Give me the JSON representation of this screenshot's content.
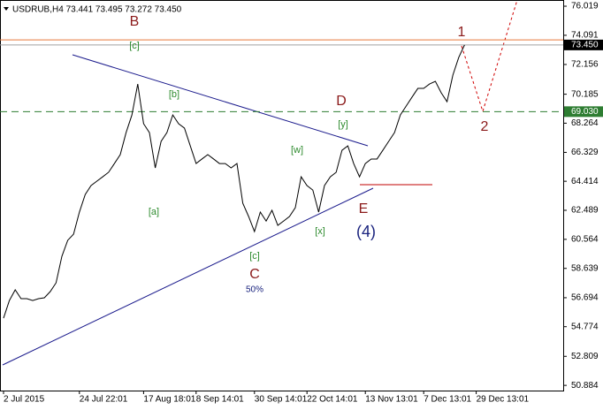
{
  "chart_data": {
    "type": "line",
    "title": "USDRUB,H4  73.441 73.495 73.272 73.450",
    "categories": [
      "2 Jul 2015",
      null,
      null,
      null,
      null,
      null,
      null,
      null,
      null,
      null,
      null,
      null,
      null,
      "24 Jul 22:01",
      null,
      null,
      null,
      null,
      null,
      null,
      null,
      null,
      null,
      null,
      "17 Aug 18:01",
      null,
      null,
      null,
      null,
      null,
      null,
      null,
      null,
      "8 Sep 14:01",
      null,
      null,
      null,
      null,
      null,
      null,
      null,
      null,
      null,
      "30 Sep 14:01",
      null,
      null,
      null,
      null,
      null,
      null,
      null,
      null,
      "22 Oct 14:01",
      null,
      null,
      null,
      null,
      null,
      null,
      null,
      null,
      null,
      "13 Nov 13:01",
      null,
      null,
      null,
      null,
      null,
      null,
      null,
      null,
      null,
      "7 Dec 13:01",
      null,
      null,
      null,
      null,
      null,
      null,
      null,
      null,
      "29 Dec 13:01"
    ],
    "values": [
      55.34,
      56.51,
      57.22,
      56.63,
      56.63,
      56.51,
      56.63,
      56.69,
      57.1,
      57.68,
      59.44,
      60.5,
      60.91,
      62.37,
      63.54,
      64.13,
      64.42,
      64.71,
      65.01,
      65.59,
      66.18,
      67.64,
      68.81,
      70.86,
      68.23,
      67.64,
      65.3,
      67.06,
      67.64,
      68.81,
      68.23,
      67.94,
      66.76,
      65.59,
      65.89,
      66.18,
      65.89,
      65.59,
      65.59,
      65.3,
      65.59,
      62.96,
      62.08,
      61.08,
      62.37,
      61.78,
      62.49,
      61.49,
      61.78,
      62.08,
      62.66,
      64.71,
      64.13,
      63.83,
      62.37,
      64.13,
      64.71,
      65.01,
      66.47,
      66.76,
      65.59,
      64.71,
      65.59,
      65.89,
      65.89,
      66.47,
      67.06,
      67.64,
      68.81,
      69.4,
      69.99,
      70.57,
      70.57,
      70.86,
      71.04,
      70.28,
      69.69,
      71.45,
      72.62,
      73.45,
      null,
      null
    ],
    "color": "#000000",
    "ylim": [
      50.54,
      76.43
    ],
    "yticks": [
      76.019,
      74.091,
      72.156,
      70.185,
      68.264,
      66.329,
      64.414,
      62.489,
      60.564,
      58.639,
      56.694,
      54.774,
      52.809,
      50.884
    ],
    "levels": [
      {
        "value": 73.79,
        "color": "#e8793a",
        "style": "solid"
      },
      {
        "value": 73.45,
        "label": "73.450",
        "color": "#a0a0a0",
        "style": "solid"
      },
      {
        "value": 69.03,
        "label": "69.030",
        "color": "#2e7d32",
        "style": "dashed"
      }
    ],
    "annotations": [
      {
        "text": "B",
        "color": "#8b1a1a"
      },
      {
        "text": "[c]",
        "color": "#2e8b2e"
      },
      {
        "text": "[b]",
        "color": "#2e8b2e"
      },
      {
        "text": "[a]",
        "color": "#2e8b2e"
      },
      {
        "text": "C",
        "color": "#8b1a1a"
      },
      {
        "text": "[c]",
        "color": "#2e8b2e"
      },
      {
        "text": "50%",
        "color": "#1a237e"
      },
      {
        "text": "[w]",
        "color": "#2e8b2e"
      },
      {
        "text": "[x]",
        "color": "#2e8b2e"
      },
      {
        "text": "[y]",
        "color": "#2e8b2e"
      },
      {
        "text": "D",
        "color": "#8b1a1a"
      },
      {
        "text": "E",
        "color": "#8b1a1a"
      },
      {
        "text": "(4)",
        "color": "#1a237e"
      },
      {
        "text": "1",
        "color": "#8b1a1a"
      },
      {
        "text": "2",
        "color": "#8b1a1a"
      }
    ]
  }
}
